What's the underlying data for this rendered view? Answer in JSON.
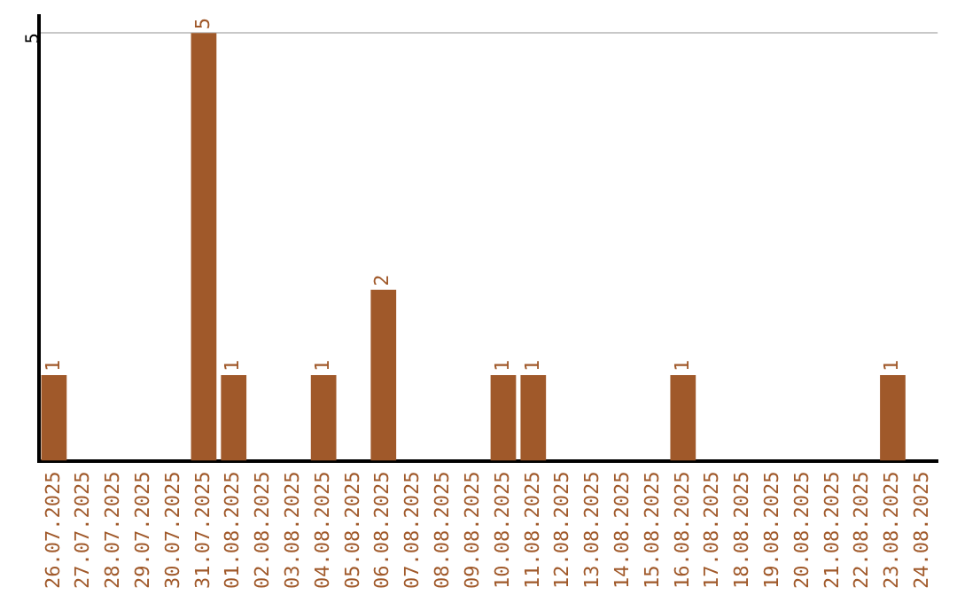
{
  "chart_data": {
    "type": "bar",
    "categories": [
      "26.07.2025",
      "27.07.2025",
      "28.07.2025",
      "29.07.2025",
      "30.07.2025",
      "31.07.2025",
      "01.08.2025",
      "02.08.2025",
      "03.08.2025",
      "04.08.2025",
      "05.08.2025",
      "06.08.2025",
      "07.08.2025",
      "08.08.2025",
      "09.08.2025",
      "10.08.2025",
      "11.08.2025",
      "12.08.2025",
      "13.08.2025",
      "14.08.2025",
      "15.08.2025",
      "16.08.2025",
      "17.08.2025",
      "18.08.2025",
      "19.08.2025",
      "20.08.2025",
      "21.08.2025",
      "22.08.2025",
      "23.08.2025",
      "24.08.2025"
    ],
    "values": [
      1,
      0,
      0,
      0,
      0,
      5,
      1,
      0,
      0,
      1,
      0,
      2,
      0,
      0,
      0,
      1,
      1,
      0,
      0,
      0,
      0,
      1,
      0,
      0,
      0,
      0,
      0,
      0,
      1,
      0
    ],
    "value_labels": [
      "1",
      null,
      null,
      null,
      null,
      "5",
      "1",
      null,
      null,
      "1",
      null,
      "2",
      null,
      null,
      null,
      "1",
      "1",
      null,
      null,
      null,
      null,
      "1",
      null,
      null,
      null,
      null,
      null,
      null,
      "1",
      null
    ],
    "color": "#a0592a",
    "ylim": [
      0,
      5.2
    ],
    "yticks": [
      5
    ],
    "grid": "y",
    "legend": false
  }
}
